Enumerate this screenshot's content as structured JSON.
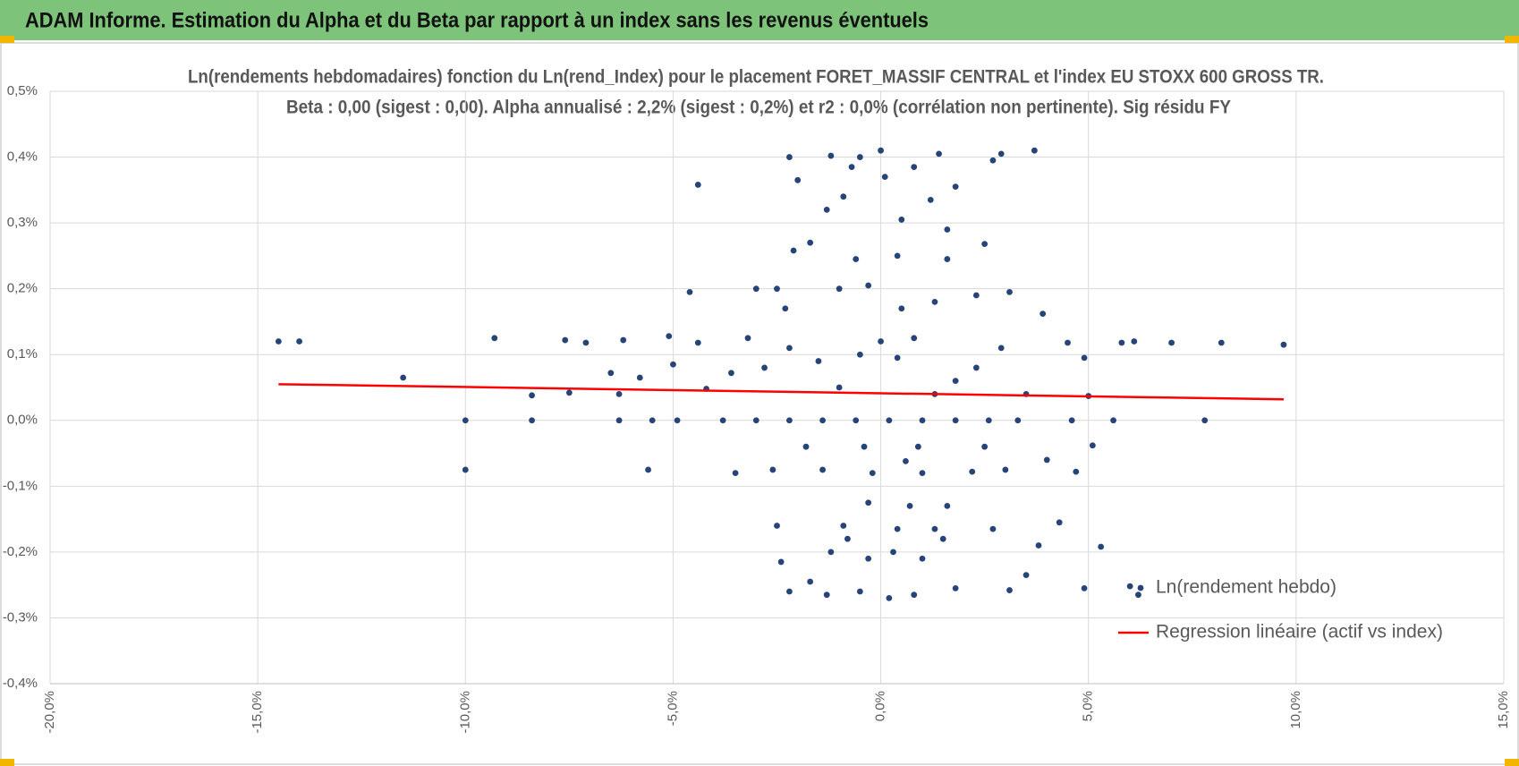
{
  "header": {
    "title": "ADAM Informe. Estimation du Alpha et du Beta par rapport à un index sans les revenus éventuels"
  },
  "chart_data": {
    "type": "scatter",
    "title": "Ln(rendements hebdomadaires) fonction du Ln(rend_Index) pour le placement FORET_MASSIF CENTRAL et l'index EU STOXX 600 GROSS TR.",
    "subtitle": "Beta : 0,00 (sigest : 0,00). Alpha annualisé : 2,2% (sigest : 0,2%) et r2 : 0,0% (corrélation non pertinente). Sig résidu FY",
    "xlim": [
      -20,
      15
    ],
    "xticks": [
      {
        "value": -20,
        "label": "-20,0%"
      },
      {
        "value": -15,
        "label": "-15,0%"
      },
      {
        "value": -10,
        "label": "-10,0%"
      },
      {
        "value": -5,
        "label": "-5,0%"
      },
      {
        "value": 0,
        "label": "0,0%"
      },
      {
        "value": 5,
        "label": "5,0%"
      },
      {
        "value": 10,
        "label": "10,0%"
      },
      {
        "value": 15,
        "label": "15,0%"
      }
    ],
    "ylim": [
      -0.4,
      0.5
    ],
    "yticks": [
      {
        "value": -0.4,
        "label": "-0,4%"
      },
      {
        "value": -0.3,
        "label": "-0,3%"
      },
      {
        "value": -0.2,
        "label": "-0,2%"
      },
      {
        "value": -0.1,
        "label": "-0,1%"
      },
      {
        "value": 0,
        "label": "0,0%"
      },
      {
        "value": 0.1,
        "label": "0,1%"
      },
      {
        "value": 0.2,
        "label": "0,2%"
      },
      {
        "value": 0.3,
        "label": "0,3%"
      },
      {
        "value": 0.4,
        "label": "0,4%"
      },
      {
        "value": 0.5,
        "label": "0,5%"
      }
    ],
    "grid": true,
    "legend": "right",
    "series": [
      {
        "name": "Ln(rendement hebdo)",
        "type": "scatter",
        "color": "#264478",
        "x": [
          -14.5,
          -14,
          -11.5,
          -10,
          -10,
          -9.3,
          -8.4,
          -8.4,
          -7.6,
          -7.5,
          -7.1,
          -6.5,
          -6.3,
          -6.3,
          -6.2,
          -5.8,
          -5.6,
          -5.5,
          -5.1,
          -5,
          -4.9,
          -4.6,
          -4.4,
          -4.4,
          -4.2,
          -3.6,
          -3.5,
          -3.2,
          -3,
          -2.5,
          -2.2,
          -2.1,
          -2,
          -1.7,
          -1.3,
          -1.2,
          -0.9,
          -0.7,
          -0.5,
          0,
          0.1,
          0.5,
          0.8,
          1.2,
          1.4,
          1.8,
          2.7,
          2.9,
          3.7,
          2.5,
          3.1,
          3.9,
          4.5,
          4.9,
          4.9,
          5,
          5.3,
          5.6,
          5.8,
          6.1,
          6,
          6.2,
          7,
          7.8,
          8.2,
          9.7,
          4.3,
          3.8,
          3.5,
          3.1,
          2.7,
          4.7,
          4,
          5.1,
          4.6,
          -2.5,
          -2.4,
          -2.2,
          -1.7,
          -1.3,
          -0.5,
          0.2,
          0.8,
          1.8,
          -1.2,
          -0.8,
          -0.3,
          0.3,
          1,
          1.5,
          -0.9,
          0.4,
          1.3,
          -0.3,
          0.7,
          1.6,
          -2.6,
          -1.4,
          -0.2,
          1,
          2.2,
          3,
          -1.8,
          -0.4,
          0.9,
          2.5,
          0.6,
          -3.8,
          -3,
          -2.2,
          -1.4,
          -0.6,
          0.2,
          1,
          1.8,
          2.6,
          3.3,
          -2.8,
          -2.2,
          -1.5,
          -1,
          -0.5,
          0,
          0.4,
          0.8,
          1.3,
          1.8,
          2.3,
          2.9,
          3.5,
          -2.3,
          -1,
          -0.3,
          0.5,
          1.3,
          2.3,
          -0.6,
          0.4,
          1.6,
          1.6
        ],
        "values": [
          0.12,
          0.12,
          0.065,
          0,
          -0.075,
          0.125,
          0.038,
          0,
          0.122,
          0.042,
          0.118,
          0.072,
          0.04,
          0,
          0.122,
          0.065,
          -0.075,
          0,
          0.128,
          0.085,
          0,
          0.195,
          0.358,
          0.118,
          0.048,
          0.072,
          -0.08,
          0.125,
          0.2,
          0.2,
          0.4,
          0.258,
          0.365,
          0.27,
          0.32,
          0.402,
          0.34,
          0.385,
          0.4,
          0.41,
          0.37,
          0.305,
          0.385,
          0.335,
          0.405,
          0.355,
          0.395,
          0.405,
          0.41,
          0.268,
          0.195,
          0.162,
          0.118,
          0.095,
          -0.255,
          0.037,
          -0.192,
          0,
          0.118,
          0.12,
          -0.252,
          -0.265,
          0.118,
          0,
          0.118,
          0.115,
          -0.155,
          -0.19,
          -0.235,
          -0.258,
          -0.165,
          -0.078,
          -0.06,
          -0.038,
          0,
          -0.16,
          -0.215,
          -0.26,
          -0.245,
          -0.265,
          -0.26,
          -0.27,
          -0.265,
          -0.255,
          -0.2,
          -0.18,
          -0.21,
          -0.2,
          -0.21,
          -0.18,
          -0.16,
          -0.165,
          -0.165,
          -0.125,
          -0.13,
          -0.13,
          -0.075,
          -0.075,
          -0.08,
          -0.08,
          -0.078,
          -0.075,
          -0.04,
          -0.04,
          -0.04,
          -0.04,
          -0.062,
          0,
          0,
          0,
          0,
          0,
          0,
          0,
          0,
          0,
          0,
          0.08,
          0.11,
          0.09,
          0.05,
          0.1,
          0.12,
          0.095,
          0.125,
          0.04,
          0.06,
          0.08,
          0.11,
          0.04,
          0.17,
          0.2,
          0.205,
          0.17,
          0.18,
          0.19,
          0.245,
          0.25,
          0.245,
          0.29
        ]
      },
      {
        "name": "Regression linéaire (actif vs index)",
        "type": "line",
        "color": "#ff0000",
        "x": [
          -14.5,
          9.7
        ],
        "values": [
          0.055,
          0.032
        ]
      }
    ]
  }
}
